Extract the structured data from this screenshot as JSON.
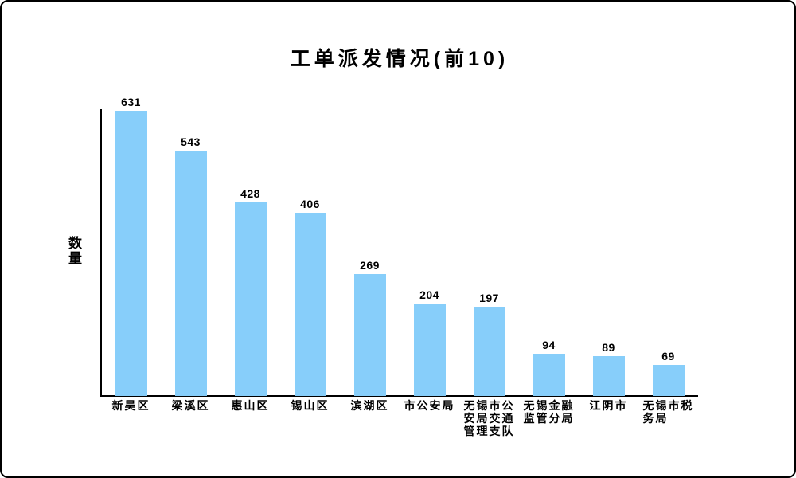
{
  "chart_data": {
    "type": "bar",
    "title": "工单派发情况(前10)",
    "xlabel": "",
    "ylabel": "数量",
    "categories": [
      "新吴区",
      "梁溪区",
      "惠山区",
      "锡山区",
      "滨湖区",
      "市公安局",
      "无锡市公安局交通管理支队",
      "无锡金融监管分局",
      "江阴市",
      "无锡市税务局"
    ],
    "category_display_lines": [
      [
        "新吴区"
      ],
      [
        "梁溪区"
      ],
      [
        "惠山区"
      ],
      [
        "锡山区"
      ],
      [
        "滨湖区"
      ],
      [
        "市公安局"
      ],
      [
        "无锡市公",
        "安局交通",
        "管理支队"
      ],
      [
        "无锡金融",
        "监管分局"
      ],
      [
        "江阴市"
      ],
      [
        "无锡市税",
        "务局"
      ]
    ],
    "values": [
      631,
      543,
      428,
      406,
      269,
      204,
      197,
      94,
      89,
      69
    ],
    "ylim": [
      0,
      640
    ],
    "grid": false,
    "legend": null,
    "bar_color": "#87CEFA",
    "axis_color": "#000000",
    "text_color": "#000000"
  }
}
